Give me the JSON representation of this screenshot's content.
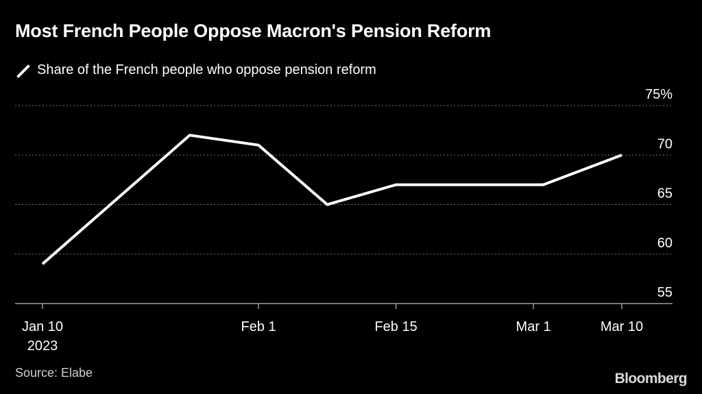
{
  "header": {
    "title": "Most French People Oppose Macron's Pension Reform"
  },
  "legend": {
    "label": "Share of the French people who oppose pension reform"
  },
  "footer": {
    "source": "Source: Elabe",
    "brand": "Bloomberg"
  },
  "colors": {
    "background": "#000000",
    "line": "#ffffff",
    "grid": "#7a7a7a",
    "text": "#ffffff"
  },
  "chart_data": {
    "type": "line",
    "title": "Most French People Oppose Macron's Pension Reform",
    "xlabel": "",
    "ylabel": "",
    "ylim": [
      55,
      75
    ],
    "yticks": [
      {
        "value": 55,
        "label": "55"
      },
      {
        "value": 60,
        "label": "60"
      },
      {
        "value": 65,
        "label": "65"
      },
      {
        "value": 70,
        "label": "70"
      },
      {
        "value": 75,
        "label": "75%"
      }
    ],
    "xticks": [
      {
        "date": "2023-01-10",
        "label": "Jan 10",
        "sublabel": "2023"
      },
      {
        "date": "2023-02-01",
        "label": "Feb 1"
      },
      {
        "date": "2023-02-15",
        "label": "Feb 15"
      },
      {
        "date": "2023-03-01",
        "label": "Mar 1"
      },
      {
        "date": "2023-03-10",
        "label": "Mar 10"
      }
    ],
    "grid": true,
    "legend_position": "top-left",
    "series": [
      {
        "name": "Share of the French people who oppose pension reform",
        "points": [
          {
            "x": "2023-01-10",
            "y": 59
          },
          {
            "x": "2023-01-25",
            "y": 72
          },
          {
            "x": "2023-02-01",
            "y": 71
          },
          {
            "x": "2023-02-08",
            "y": 65
          },
          {
            "x": "2023-02-15",
            "y": 67
          },
          {
            "x": "2023-03-02",
            "y": 67
          },
          {
            "x": "2023-03-10",
            "y": 70
          }
        ]
      }
    ]
  }
}
